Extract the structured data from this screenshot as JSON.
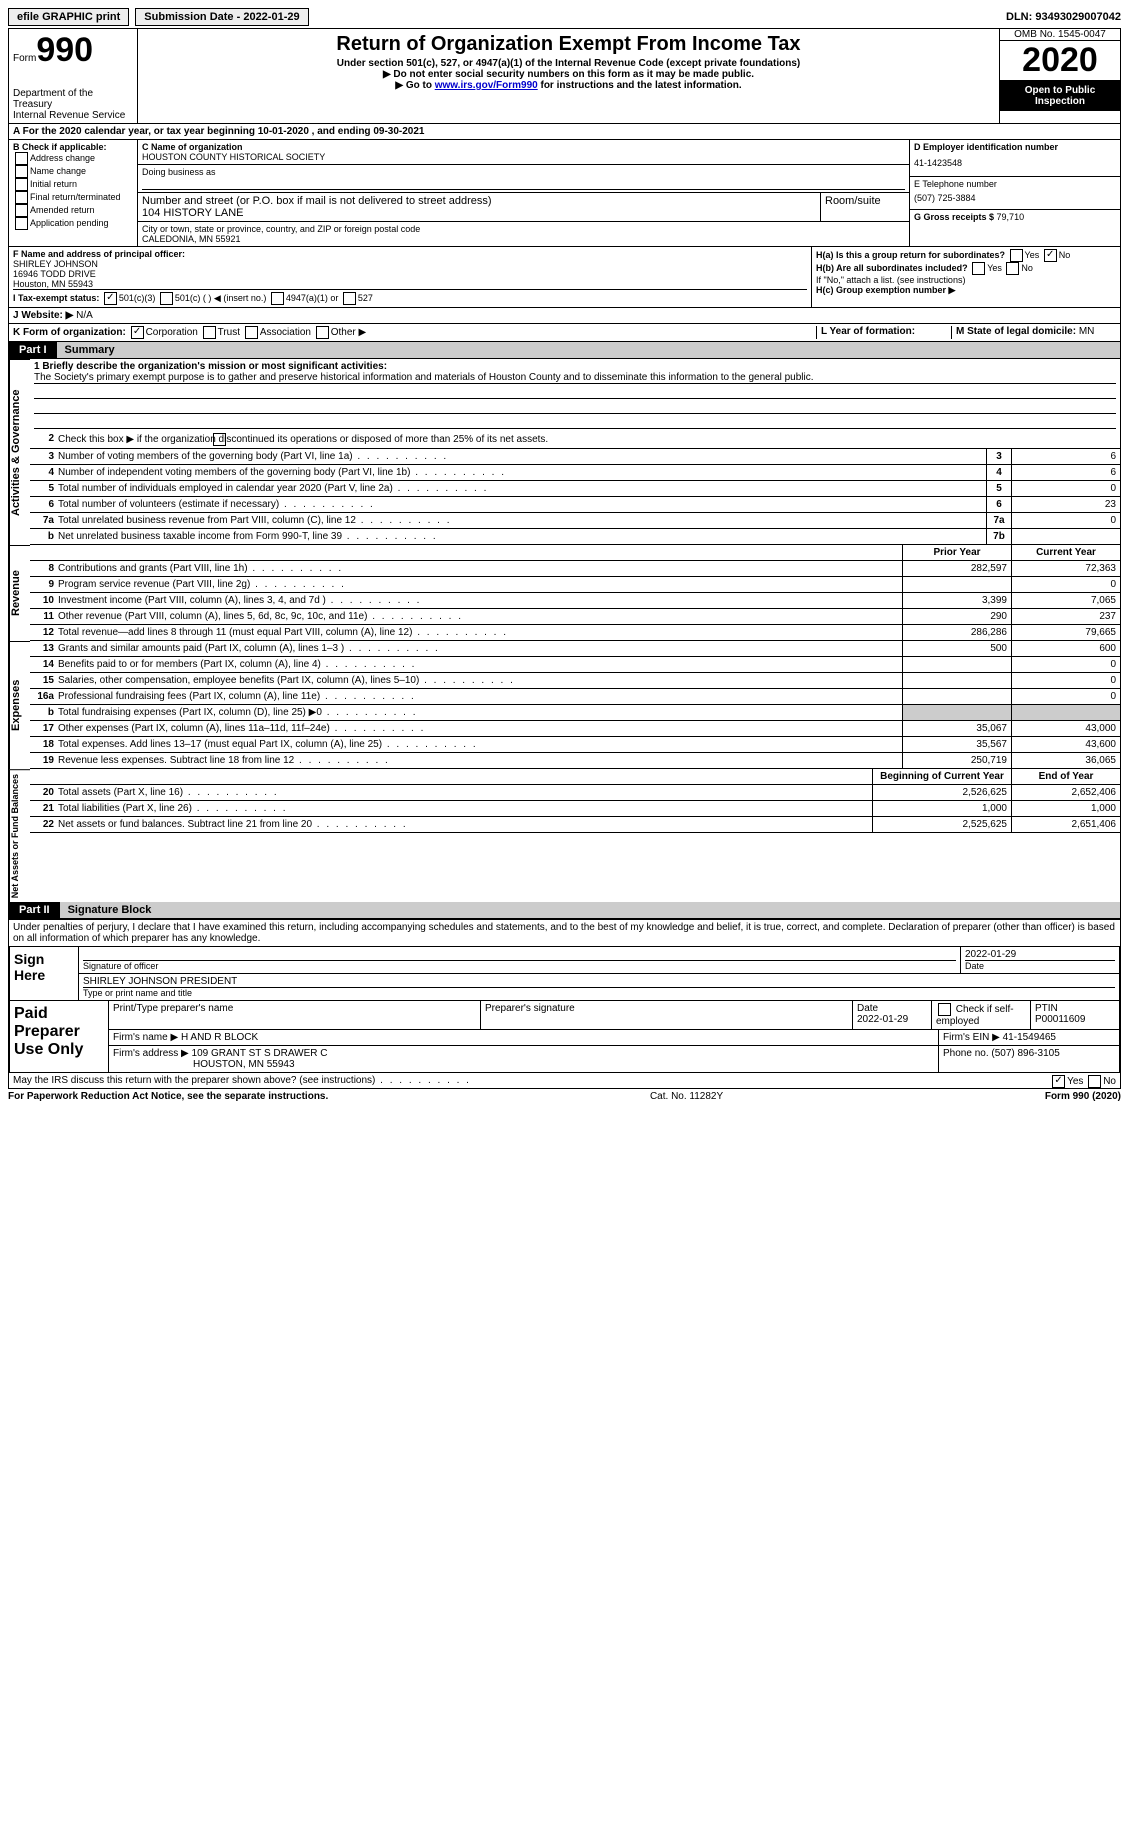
{
  "topbar": {
    "efile": "efile GRAPHIC print",
    "subdate_label": "Submission Date - ",
    "subdate": "2022-01-29",
    "dln_label": "DLN: ",
    "dln": "93493029007042"
  },
  "header": {
    "form_word": "Form",
    "form_num": "990",
    "dept": "Department of the Treasury\nInternal Revenue Service",
    "title": "Return of Organization Exempt From Income Tax",
    "sub1": "Under section 501(c), 527, or 4947(a)(1) of the Internal Revenue Code (except private foundations)",
    "sub2": "▶ Do not enter social security numbers on this form as it may be made public.",
    "sub3a": "▶ Go to ",
    "sub3link": "www.irs.gov/Form990",
    "sub3b": " for instructions and the latest information.",
    "omb": "OMB No. 1545-0047",
    "year": "2020",
    "open": "Open to Public Inspection"
  },
  "lineA": "A For the 2020 calendar year, or tax year beginning 10-01-2020     , and ending 09-30-2021",
  "boxB": {
    "title": "B Check if applicable:",
    "opts": [
      "Address change",
      "Name change",
      "Initial return",
      "Final return/terminated",
      "Amended return",
      "Application pending"
    ]
  },
  "boxC": {
    "label_name": "C Name of organization",
    "name": "HOUSTON COUNTY HISTORICAL SOCIETY",
    "dba_label": "Doing business as",
    "dba": "",
    "street_label": "Number and street (or P.O. box if mail is not delivered to street address)",
    "street": "104 HISTORY LANE",
    "suite_label": "Room/suite",
    "city_label": "City or town, state or province, country, and ZIP or foreign postal code",
    "city": "CALEDONIA, MN  55921"
  },
  "boxD": {
    "ein_label": "D Employer identification number",
    "ein": "41-1423548",
    "phone_label": "E Telephone number",
    "phone": "(507) 725-3884",
    "gross_label": "G Gross receipts $ ",
    "gross": "79,710"
  },
  "boxF": {
    "label": "F  Name and address of principal officer:",
    "name": "SHIRLEY JOHNSON",
    "addr1": "16946 TODD DRIVE",
    "addr2": "Houston, MN  55943"
  },
  "boxH": {
    "a": "H(a)  Is this a group return for subordinates?",
    "a_no": true,
    "b": "H(b)  Are all subordinates included?",
    "b_note": "If \"No,\" attach a list. (see instructions)",
    "c": "H(c)  Group exemption number ▶"
  },
  "lineI": {
    "label": "I  Tax-exempt status:",
    "c3": "501(c)(3)",
    "c": "501(c) (  ) ◀ (insert no.)",
    "a1": "4947(a)(1) or",
    "s527": "527"
  },
  "lineJ": {
    "label": "J  Website: ▶",
    "val": "N/A"
  },
  "lineK": {
    "label": "K Form of organization:",
    "corp": "Corporation",
    "trust": "Trust",
    "assoc": "Association",
    "other": "Other ▶",
    "year_label": "L Year of formation:",
    "state_label": "M State of legal domicile: ",
    "state": "MN"
  },
  "part1": {
    "tag": "Part I",
    "title": "Summary"
  },
  "mission": {
    "q1": "1  Briefly describe the organization's mission or most significant activities:",
    "text": "The Society's primary exempt purpose is to gather and preserve historical information and materials of Houston County and to disseminate this information to the general public."
  },
  "gov": {
    "l2": "Check this box ▶        if the organization discontinued its operations or disposed of more than 25% of its net assets.",
    "rows": [
      {
        "n": "3",
        "d": "Number of voting members of the governing body (Part VI, line 1a)",
        "box": "3",
        "v": "6"
      },
      {
        "n": "4",
        "d": "Number of independent voting members of the governing body (Part VI, line 1b)",
        "box": "4",
        "v": "6"
      },
      {
        "n": "5",
        "d": "Total number of individuals employed in calendar year 2020 (Part V, line 2a)",
        "box": "5",
        "v": "0"
      },
      {
        "n": "6",
        "d": "Total number of volunteers (estimate if necessary)",
        "box": "6",
        "v": "23"
      },
      {
        "n": "7a",
        "d": "Total unrelated business revenue from Part VIII, column (C), line 12",
        "box": "7a",
        "v": "0"
      },
      {
        "n": "b",
        "d": "Net unrelated business taxable income from Form 990-T, line 39",
        "box": "7b",
        "v": ""
      }
    ]
  },
  "cols": {
    "prior": "Prior Year",
    "current": "Current Year"
  },
  "revenue": [
    {
      "n": "8",
      "d": "Contributions and grants (Part VIII, line 1h)",
      "p": "282,597",
      "c": "72,363"
    },
    {
      "n": "9",
      "d": "Program service revenue (Part VIII, line 2g)",
      "p": "",
      "c": "0"
    },
    {
      "n": "10",
      "d": "Investment income (Part VIII, column (A), lines 3, 4, and 7d )",
      "p": "3,399",
      "c": "7,065"
    },
    {
      "n": "11",
      "d": "Other revenue (Part VIII, column (A), lines 5, 6d, 8c, 9c, 10c, and 11e)",
      "p": "290",
      "c": "237"
    },
    {
      "n": "12",
      "d": "Total revenue—add lines 8 through 11 (must equal Part VIII, column (A), line 12)",
      "p": "286,286",
      "c": "79,665"
    }
  ],
  "expenses": [
    {
      "n": "13",
      "d": "Grants and similar amounts paid (Part IX, column (A), lines 1–3 )",
      "p": "500",
      "c": "600"
    },
    {
      "n": "14",
      "d": "Benefits paid to or for members (Part IX, column (A), line 4)",
      "p": "",
      "c": "0"
    },
    {
      "n": "15",
      "d": "Salaries, other compensation, employee benefits (Part IX, column (A), lines 5–10)",
      "p": "",
      "c": "0"
    },
    {
      "n": "16a",
      "d": "Professional fundraising fees (Part IX, column (A), line 11e)",
      "p": "",
      "c": "0"
    },
    {
      "n": "b",
      "d": "Total fundraising expenses (Part IX, column (D), line 25) ▶0",
      "p": "grey",
      "c": "grey"
    },
    {
      "n": "17",
      "d": "Other expenses (Part IX, column (A), lines 11a–11d, 11f–24e)",
      "p": "35,067",
      "c": "43,000"
    },
    {
      "n": "18",
      "d": "Total expenses. Add lines 13–17 (must equal Part IX, column (A), line 25)",
      "p": "35,567",
      "c": "43,600"
    },
    {
      "n": "19",
      "d": "Revenue less expenses. Subtract line 18 from line 12",
      "p": "250,719",
      "c": "36,065"
    }
  ],
  "netcols": {
    "begin": "Beginning of Current Year",
    "end": "End of Year"
  },
  "net": [
    {
      "n": "20",
      "d": "Total assets (Part X, line 16)",
      "p": "2,526,625",
      "c": "2,652,406"
    },
    {
      "n": "21",
      "d": "Total liabilities (Part X, line 26)",
      "p": "1,000",
      "c": "1,000"
    },
    {
      "n": "22",
      "d": "Net assets or fund balances. Subtract line 21 from line 20",
      "p": "2,525,625",
      "c": "2,651,406"
    }
  ],
  "part2": {
    "tag": "Part II",
    "title": "Signature Block"
  },
  "perjury": "Under penalties of perjury, I declare that I have examined this return, including accompanying schedules and statements, and to the best of my knowledge and belief, it is true, correct, and complete. Declaration of preparer (other than officer) is based on all information of which preparer has any knowledge.",
  "sign": {
    "here": "Sign Here",
    "sig_label": "Signature of officer",
    "date_label": "Date",
    "date": "2022-01-29",
    "name": "SHIRLEY JOHNSON  PRESIDENT",
    "name_label": "Type or print name and title"
  },
  "paid": {
    "here": "Paid Preparer Use Only",
    "h1": "Print/Type preparer's name",
    "h2": "Preparer's signature",
    "h3": "Date",
    "h4": "Check       if self-employed",
    "h5": "PTIN",
    "date": "2022-01-29",
    "ptin": "P00011609",
    "firm_label": "Firm's name    ▶",
    "firm": "H AND R BLOCK",
    "ein_label": "Firm's EIN ▶",
    "ein": "41-1549465",
    "addr_label": "Firm's address ▶",
    "addr": "109 GRANT ST S DRAWER C",
    "addr2": "HOUSTON, MN  55943",
    "phone_label": "Phone no. ",
    "phone": "(507) 896-3105"
  },
  "discuss": "May the IRS discuss this return with the preparer shown above? (see instructions)",
  "footer": {
    "left": "For Paperwork Reduction Act Notice, see the separate instructions.",
    "mid": "Cat. No. 11282Y",
    "right": "Form 990 (2020)"
  },
  "yes": "Yes",
  "no": "No"
}
